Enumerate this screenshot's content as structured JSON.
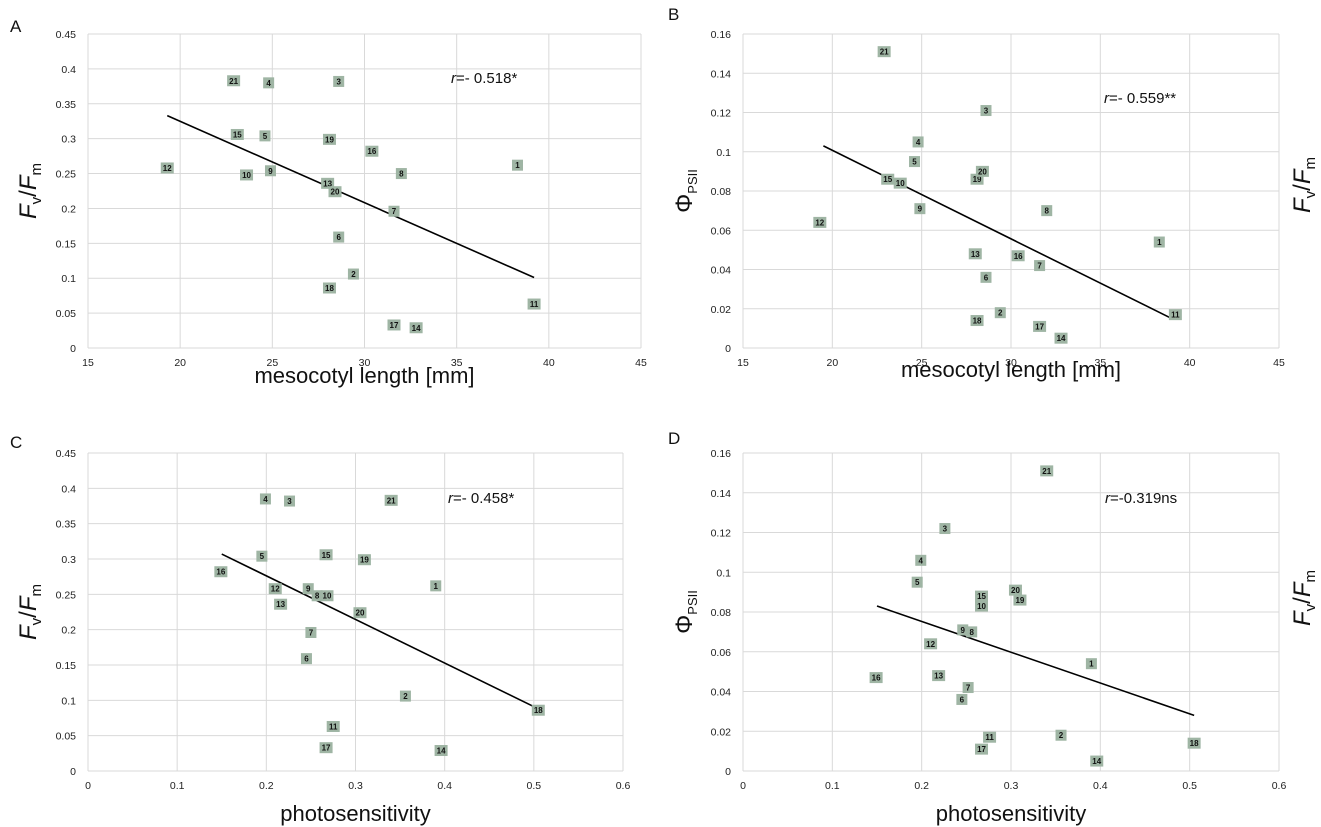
{
  "chart_data": [
    {
      "panel": "A",
      "type": "scatter",
      "xlabel": "mesocotyl length [mm]",
      "ylabel": "Fv/Fm",
      "ylabel_main": "F",
      "ylabel_sub1": "v",
      "ylabel_mid": "/F",
      "ylabel_sub2": "m",
      "xlim": [
        15,
        45
      ],
      "ylim": [
        0,
        0.45
      ],
      "xticks": [
        15,
        20,
        25,
        30,
        35,
        40,
        45
      ],
      "yticks": [
        0,
        0.05,
        0.1,
        0.15,
        0.2,
        0.25,
        0.3,
        0.35,
        0.4,
        0.45
      ],
      "annotation_prefix": "r",
      "annotation": "=- 0.518*",
      "trendline": [
        [
          19.3,
          0.333
        ],
        [
          39.2,
          0.101
        ]
      ],
      "points": [
        {
          "label": "1",
          "x": 38.3,
          "y": 0.262
        },
        {
          "label": "2",
          "x": 29.4,
          "y": 0.106
        },
        {
          "label": "3",
          "x": 28.6,
          "y": 0.382
        },
        {
          "label": "4",
          "x": 24.8,
          "y": 0.38
        },
        {
          "label": "5",
          "x": 24.6,
          "y": 0.304
        },
        {
          "label": "6",
          "x": 28.6,
          "y": 0.159
        },
        {
          "label": "7",
          "x": 31.6,
          "y": 0.196
        },
        {
          "label": "8",
          "x": 32.0,
          "y": 0.25
        },
        {
          "label": "9",
          "x": 24.9,
          "y": 0.254
        },
        {
          "label": "10",
          "x": 23.6,
          "y": 0.248
        },
        {
          "label": "11",
          "x": 39.2,
          "y": 0.063
        },
        {
          "label": "12",
          "x": 19.3,
          "y": 0.258
        },
        {
          "label": "13",
          "x": 28.0,
          "y": 0.236
        },
        {
          "label": "15",
          "x": 23.1,
          "y": 0.306
        },
        {
          "label": "16",
          "x": 30.4,
          "y": 0.282
        },
        {
          "label": "17",
          "x": 31.6,
          "y": 0.033
        },
        {
          "label": "18",
          "x": 28.1,
          "y": 0.086
        },
        {
          "label": "19",
          "x": 28.1,
          "y": 0.299
        },
        {
          "label": "20",
          "x": 28.4,
          "y": 0.224
        },
        {
          "label": "21",
          "x": 22.9,
          "y": 0.383
        },
        {
          "label": "14",
          "x": 32.8,
          "y": 0.029
        }
      ]
    },
    {
      "panel": "B",
      "type": "scatter",
      "xlabel": "mesocotyl length [mm]",
      "ylabel": "ΦPSII",
      "ylabel_main": "Φ",
      "ylabel_sub1": "PSII",
      "ylabel_mid": "",
      "ylabel_sub2": "",
      "xlim": [
        15,
        45
      ],
      "ylim": [
        0,
        0.16
      ],
      "xticks": [
        15,
        20,
        25,
        30,
        35,
        40,
        45
      ],
      "yticks": [
        0,
        0.02,
        0.04,
        0.06,
        0.08,
        0.1,
        0.12,
        0.14,
        0.16
      ],
      "annotation_prefix": "r",
      "annotation": "=- 0.559**",
      "trendline": [
        [
          19.5,
          0.103
        ],
        [
          39.0,
          0.015
        ]
      ],
      "points": [
        {
          "label": "1",
          "x": 38.3,
          "y": 0.054
        },
        {
          "label": "2",
          "x": 29.4,
          "y": 0.018
        },
        {
          "label": "3",
          "x": 28.6,
          "y": 0.121
        },
        {
          "label": "4",
          "x": 24.8,
          "y": 0.105
        },
        {
          "label": "5",
          "x": 24.6,
          "y": 0.095
        },
        {
          "label": "6",
          "x": 28.6,
          "y": 0.036
        },
        {
          "label": "7",
          "x": 31.6,
          "y": 0.042
        },
        {
          "label": "8",
          "x": 32.0,
          "y": 0.07
        },
        {
          "label": "9",
          "x": 24.9,
          "y": 0.071
        },
        {
          "label": "10",
          "x": 23.8,
          "y": 0.084
        },
        {
          "label": "11",
          "x": 39.2,
          "y": 0.017
        },
        {
          "label": "12",
          "x": 19.3,
          "y": 0.064
        },
        {
          "label": "13",
          "x": 28.0,
          "y": 0.048
        },
        {
          "label": "14",
          "x": 32.8,
          "y": 0.005
        },
        {
          "label": "15",
          "x": 23.1,
          "y": 0.086
        },
        {
          "label": "16",
          "x": 30.4,
          "y": 0.047
        },
        {
          "label": "17",
          "x": 31.6,
          "y": 0.011
        },
        {
          "label": "18",
          "x": 28.1,
          "y": 0.014
        },
        {
          "label": "19",
          "x": 28.1,
          "y": 0.086
        },
        {
          "label": "20",
          "x": 28.4,
          "y": 0.09
        },
        {
          "label": "21",
          "x": 22.9,
          "y": 0.151
        }
      ]
    },
    {
      "panel": "C",
      "type": "scatter",
      "xlabel": "photosensitivity",
      "ylabel": "Fv/Fm",
      "ylabel_main": "F",
      "ylabel_sub1": "v",
      "ylabel_mid": "/F",
      "ylabel_sub2": "m",
      "xlim": [
        0,
        0.6
      ],
      "ylim": [
        0,
        0.45
      ],
      "xticks": [
        0,
        0.1,
        0.2,
        0.3,
        0.4,
        0.5,
        0.6
      ],
      "yticks": [
        0,
        0.05,
        0.1,
        0.15,
        0.2,
        0.25,
        0.3,
        0.35,
        0.4,
        0.45
      ],
      "annotation_prefix": "r",
      "annotation": "=- 0.458*",
      "trendline": [
        [
          0.15,
          0.307
        ],
        [
          0.505,
          0.088
        ]
      ],
      "points": [
        {
          "label": "1",
          "x": 0.39,
          "y": 0.262
        },
        {
          "label": "2",
          "x": 0.356,
          "y": 0.106
        },
        {
          "label": "3",
          "x": 0.226,
          "y": 0.382
        },
        {
          "label": "4",
          "x": 0.199,
          "y": 0.385
        },
        {
          "label": "5",
          "x": 0.195,
          "y": 0.304
        },
        {
          "label": "6",
          "x": 0.245,
          "y": 0.159
        },
        {
          "label": "7",
          "x": 0.25,
          "y": 0.196
        },
        {
          "label": "8",
          "x": 0.257,
          "y": 0.248
        },
        {
          "label": "9",
          "x": 0.247,
          "y": 0.258
        },
        {
          "label": "10",
          "x": 0.268,
          "y": 0.248
        },
        {
          "label": "11",
          "x": 0.275,
          "y": 0.063
        },
        {
          "label": "12",
          "x": 0.21,
          "y": 0.258
        },
        {
          "label": "13",
          "x": 0.216,
          "y": 0.236
        },
        {
          "label": "14",
          "x": 0.396,
          "y": 0.029
        },
        {
          "label": "15",
          "x": 0.267,
          "y": 0.306
        },
        {
          "label": "16",
          "x": 0.149,
          "y": 0.282
        },
        {
          "label": "17",
          "x": 0.267,
          "y": 0.033
        },
        {
          "label": "18",
          "x": 0.505,
          "y": 0.086
        },
        {
          "label": "19",
          "x": 0.31,
          "y": 0.299
        },
        {
          "label": "20",
          "x": 0.305,
          "y": 0.224
        },
        {
          "label": "21",
          "x": 0.34,
          "y": 0.383
        }
      ]
    },
    {
      "panel": "D",
      "type": "scatter",
      "xlabel": "photosensitivity",
      "ylabel": "ΦPSII",
      "ylabel_main": "Φ",
      "ylabel_sub1": "PSII",
      "ylabel_mid": "",
      "ylabel_sub2": "",
      "xlim": [
        0,
        0.6
      ],
      "ylim": [
        0,
        0.16
      ],
      "xticks": [
        0,
        0.1,
        0.2,
        0.3,
        0.4,
        0.5,
        0.6
      ],
      "yticks": [
        0,
        0.02,
        0.04,
        0.06,
        0.08,
        0.1,
        0.12,
        0.14,
        0.16
      ],
      "annotation_prefix": "r",
      "annotation": "=-0.319ns",
      "trendline": [
        [
          0.15,
          0.083
        ],
        [
          0.505,
          0.028
        ]
      ],
      "points": [
        {
          "label": "1",
          "x": 0.39,
          "y": 0.054
        },
        {
          "label": "2",
          "x": 0.356,
          "y": 0.018
        },
        {
          "label": "3",
          "x": 0.226,
          "y": 0.122
        },
        {
          "label": "4",
          "x": 0.199,
          "y": 0.106
        },
        {
          "label": "5",
          "x": 0.195,
          "y": 0.095
        },
        {
          "label": "6",
          "x": 0.245,
          "y": 0.036
        },
        {
          "label": "7",
          "x": 0.252,
          "y": 0.042
        },
        {
          "label": "8",
          "x": 0.256,
          "y": 0.07
        },
        {
          "label": "9",
          "x": 0.246,
          "y": 0.071
        },
        {
          "label": "10",
          "x": 0.267,
          "y": 0.083
        },
        {
          "label": "11",
          "x": 0.276,
          "y": 0.017
        },
        {
          "label": "12",
          "x": 0.21,
          "y": 0.064
        },
        {
          "label": "13",
          "x": 0.219,
          "y": 0.048
        },
        {
          "label": "14",
          "x": 0.396,
          "y": 0.005
        },
        {
          "label": "15",
          "x": 0.267,
          "y": 0.088
        },
        {
          "label": "16",
          "x": 0.149,
          "y": 0.047
        },
        {
          "label": "17",
          "x": 0.267,
          "y": 0.011
        },
        {
          "label": "18",
          "x": 0.505,
          "y": 0.014
        },
        {
          "label": "19",
          "x": 0.31,
          "y": 0.086
        },
        {
          "label": "20",
          "x": 0.305,
          "y": 0.091
        },
        {
          "label": "21",
          "x": 0.34,
          "y": 0.151
        }
      ]
    }
  ],
  "side_labels": [
    {
      "main": "F",
      "sub1": "v",
      "mid": "/F",
      "sub2": "m"
    },
    {
      "main": "F",
      "sub1": "v",
      "mid": "/F",
      "sub2": "m"
    }
  ]
}
